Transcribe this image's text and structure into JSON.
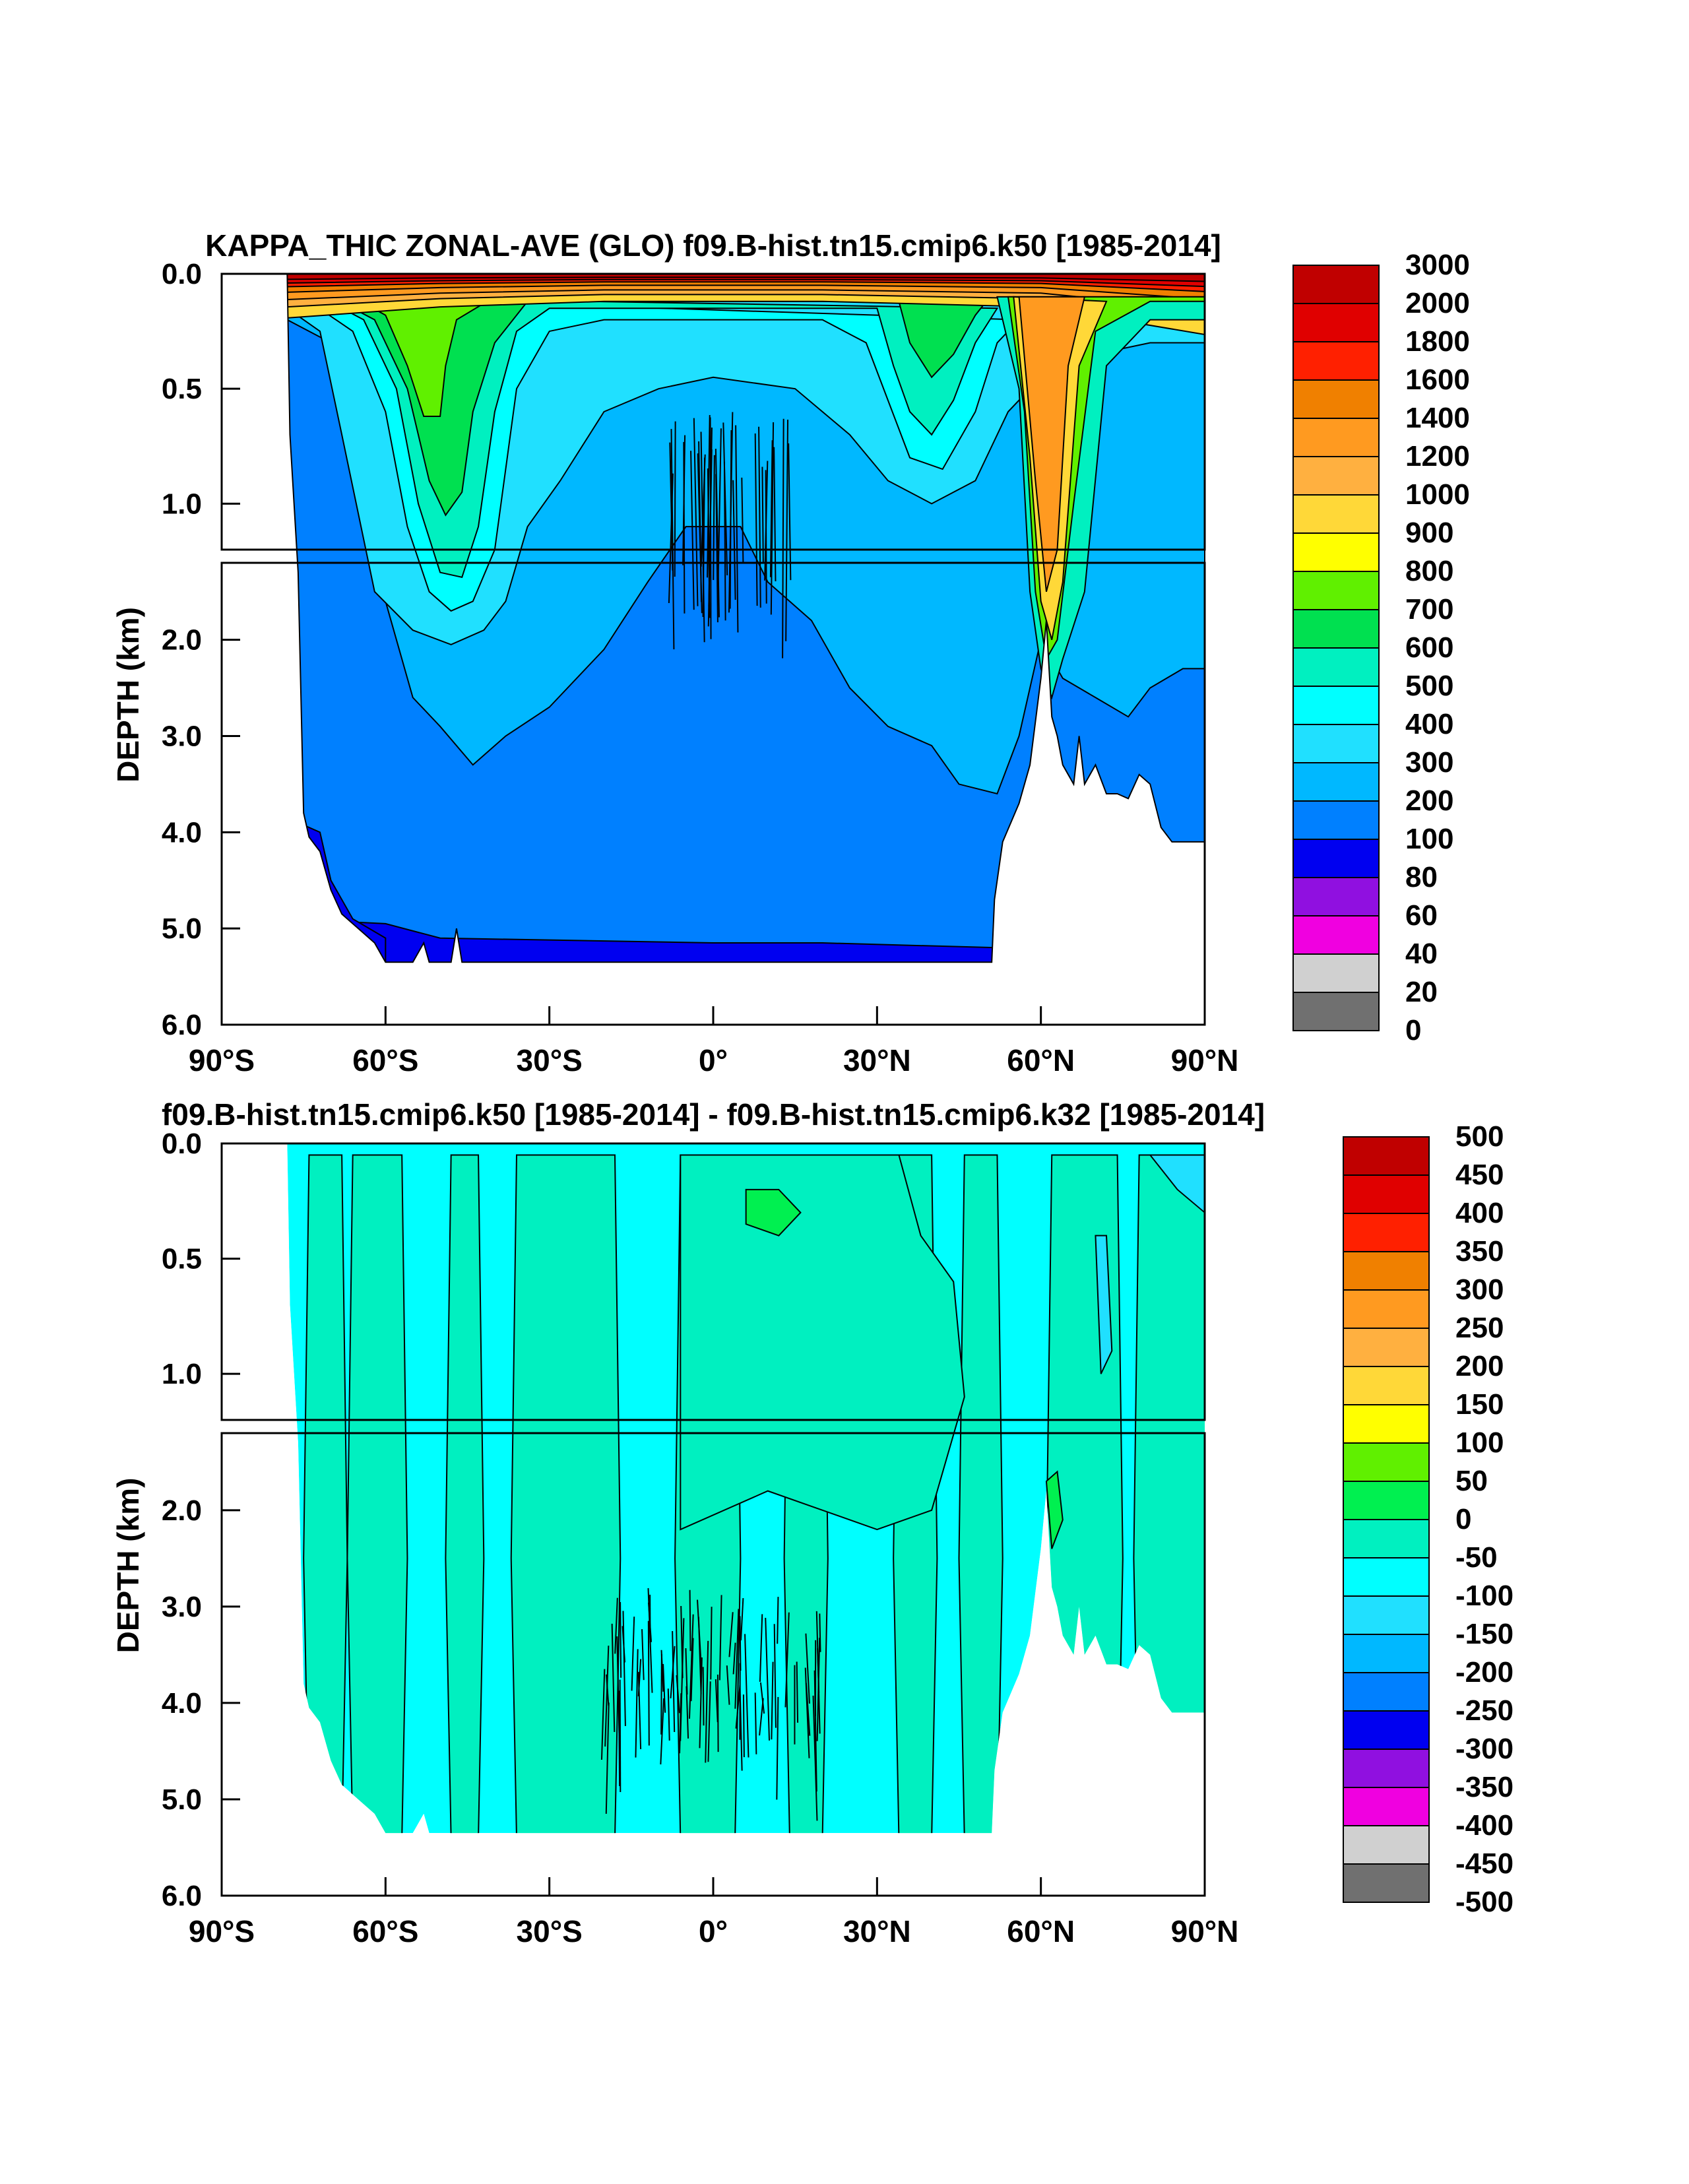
{
  "panels": [
    {
      "title": "KAPPA_THIC ZONAL-AVE (GLO) f09.B-hist.tn15.cmip6.k50 [1985-2014]",
      "ylabel": "DEPTH (km)",
      "upper_ticks": [
        "0.0",
        "0.5",
        "1.0"
      ],
      "lower_ticks": [
        "2.0",
        "3.0",
        "4.0",
        "5.0",
        "6.0"
      ],
      "xticks": [
        "90°S",
        "60°S",
        "30°S",
        "0°",
        "30°N",
        "60°N",
        "90°N"
      ],
      "colorbar": {
        "labels": [
          "3000",
          "2000",
          "1800",
          "1600",
          "1400",
          "1200",
          "1000",
          "900",
          "800",
          "700",
          "600",
          "500",
          "400",
          "300",
          "200",
          "100",
          "80",
          "60",
          "40",
          "20",
          "0"
        ],
        "colors": [
          "#c00000",
          "#e00000",
          "#ff2000",
          "#f08000",
          "#ff9a20",
          "#ffb040",
          "#ffd838",
          "#ffff00",
          "#60f000",
          "#00e050",
          "#00f0c0",
          "#00ffff",
          "#20e0ff",
          "#00b8ff",
          "#0080ff",
          "#0000f0",
          "#9010e0",
          "#f000e0",
          "#d0d0d0",
          "#707070"
        ]
      }
    },
    {
      "title": "f09.B-hist.tn15.cmip6.k50 [1985-2014] - f09.B-hist.tn15.cmip6.k32 [1985-2014]",
      "ylabel": "DEPTH (km)",
      "upper_ticks": [
        "0.0",
        "0.5",
        "1.0"
      ],
      "lower_ticks": [
        "2.0",
        "3.0",
        "4.0",
        "5.0",
        "6.0"
      ],
      "xticks": [
        "90°S",
        "60°S",
        "30°S",
        "0°",
        "30°N",
        "60°N",
        "90°N"
      ],
      "colorbar": {
        "labels": [
          "500",
          "450",
          "400",
          "350",
          "300",
          "250",
          "200",
          "150",
          "100",
          "50",
          "0",
          "-50",
          "-100",
          "-150",
          "-200",
          "-250",
          "-300",
          "-350",
          "-400",
          "-450",
          "-500"
        ],
        "colors": [
          "#c00000",
          "#e00000",
          "#ff2000",
          "#f08000",
          "#ff9a20",
          "#ffb040",
          "#ffd838",
          "#ffff00",
          "#60f000",
          "#00f050",
          "#00f0c0",
          "#00ffff",
          "#20e0ff",
          "#00b8ff",
          "#0080ff",
          "#0000f0",
          "#9010e0",
          "#f000e0",
          "#d0d0d0",
          "#707070"
        ]
      }
    }
  ],
  "chart_data": [
    {
      "type": "heatmap",
      "title": "KAPPA_THIC ZONAL-AVE (GLO) f09.B-hist.tn15.cmip6.k50 [1985-2014]",
      "xlabel": "",
      "ylabel": "DEPTH (km)",
      "x_range": [
        -90,
        90
      ],
      "y_range_km": [
        0,
        6
      ],
      "upper_panel_range_km": [
        0,
        1.2
      ],
      "contour_levels": [
        0,
        20,
        40,
        60,
        80,
        100,
        200,
        300,
        400,
        500,
        600,
        700,
        800,
        900,
        1000,
        1200,
        1400,
        1600,
        1800,
        2000,
        3000
      ],
      "approx_features": {
        "surface_max": 3000,
        "deep_ocean_value": 250,
        "southern_ocean_60S_max": 900,
        "subtropical_40S_upper": 700,
        "north_atlantic_60N_column": 1400,
        "bottom_layer": 150
      }
    },
    {
      "type": "heatmap",
      "title": "f09.B-hist.tn15.cmip6.k50 [1985-2014] - f09.B-hist.tn15.cmip6.k32 [1985-2014]",
      "xlabel": "",
      "ylabel": "DEPTH (km)",
      "x_range": [
        -90,
        90
      ],
      "y_range_km": [
        0,
        6
      ],
      "upper_panel_range_km": [
        0,
        1.2
      ],
      "contour_levels": [
        -500,
        -450,
        -400,
        -350,
        -300,
        -250,
        -200,
        -150,
        -100,
        -50,
        0,
        50,
        100,
        150,
        200,
        250,
        300,
        350,
        400,
        450,
        500
      ],
      "approx_features": {
        "dominant_range": [
          -50,
          50
        ],
        "max_positive": 100,
        "min_negative": -150
      }
    }
  ]
}
